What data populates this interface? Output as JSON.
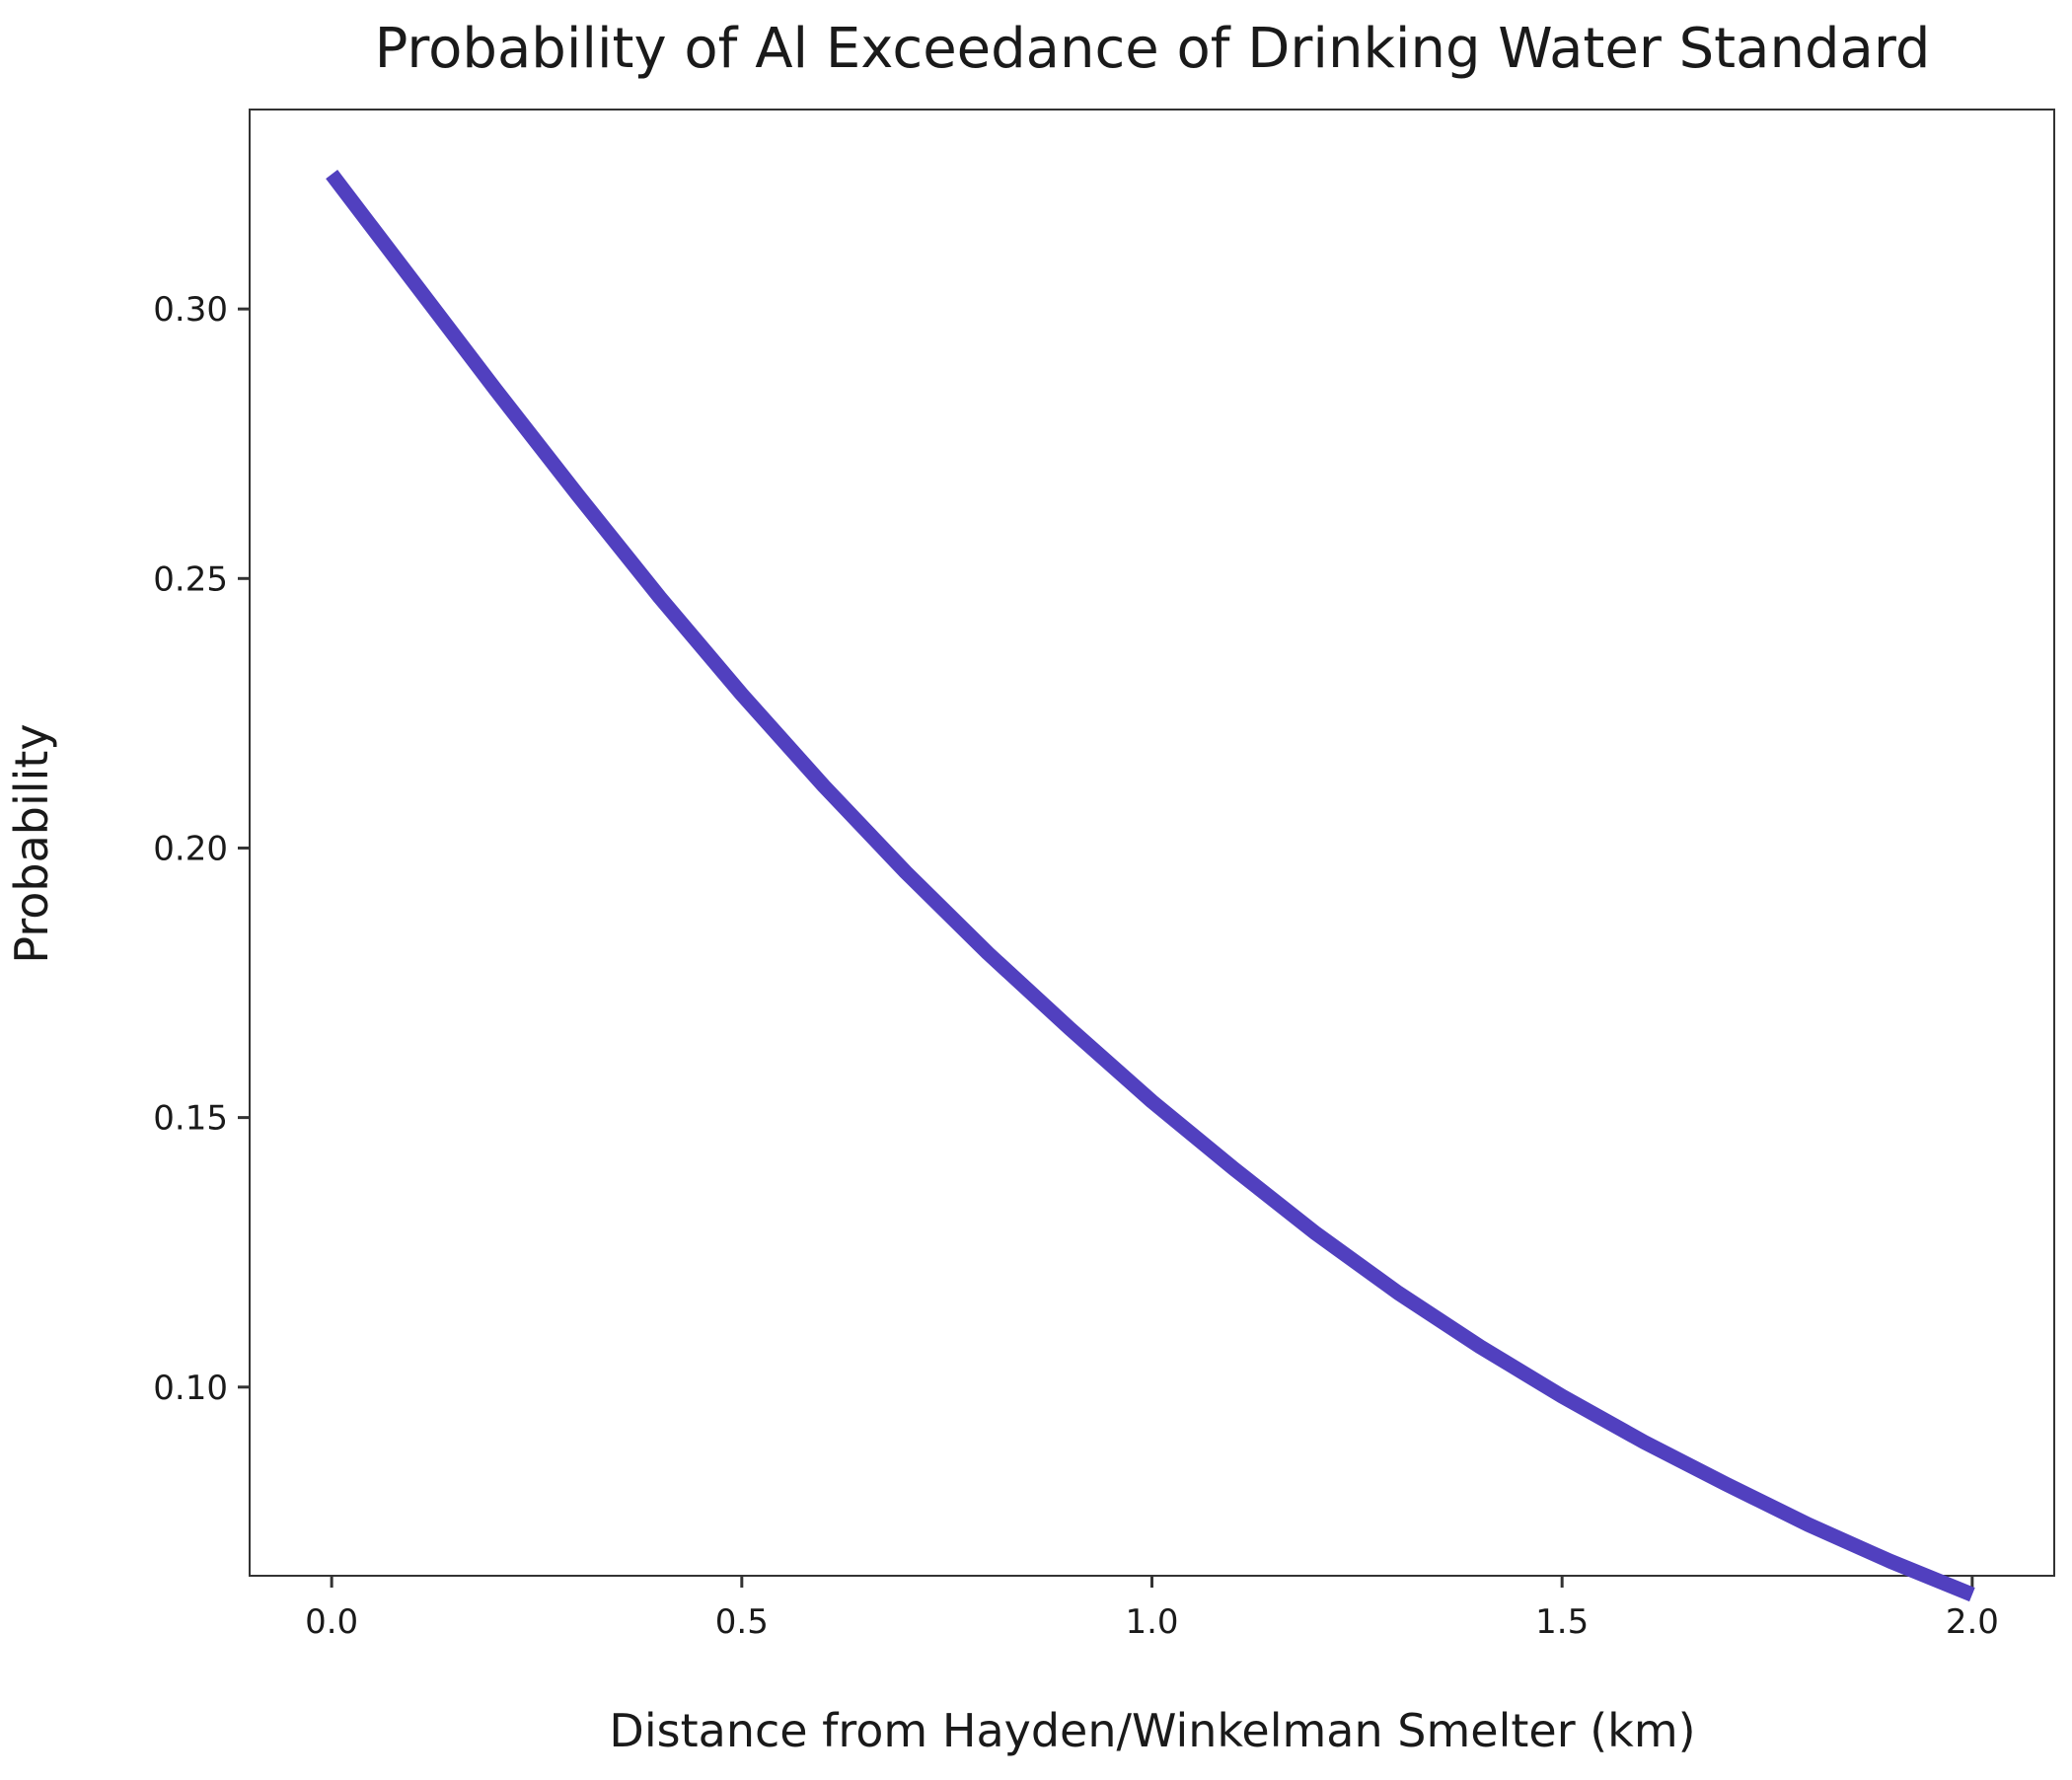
{
  "chart_data": {
    "type": "line",
    "title": "Probability of Al Exceedance of Drinking Water Standard",
    "xlabel": "Distance from Hayden/Winkelman Smelter (km)",
    "ylabel": "Probability",
    "xlim": [
      -0.1,
      2.1
    ],
    "ylim": [
      0.065,
      0.337
    ],
    "x_ticks": [
      0.0,
      0.5,
      1.0,
      1.5,
      2.0
    ],
    "x_tick_labels": [
      "0.0",
      "0.5",
      "1.0",
      "1.5",
      "2.0"
    ],
    "y_ticks": [
      0.1,
      0.15,
      0.2,
      0.25,
      0.3
    ],
    "y_tick_labels": [
      "0.10",
      "0.15",
      "0.20",
      "0.25",
      "0.30"
    ],
    "grid": false,
    "series": [
      {
        "name": "Probability",
        "color": "#5140BF",
        "x": [
          0.0,
          0.1,
          0.2,
          0.3,
          0.4,
          0.5,
          0.6,
          0.7,
          0.8,
          0.9,
          1.0,
          1.1,
          1.2,
          1.3,
          1.4,
          1.5,
          1.6,
          1.7,
          1.8,
          1.9,
          2.0
        ],
        "y": [
          0.325,
          0.305,
          0.285,
          0.2655,
          0.2465,
          0.2285,
          0.2115,
          0.1955,
          0.1805,
          0.1665,
          0.153,
          0.1405,
          0.1285,
          0.1175,
          0.1075,
          0.0983,
          0.0898,
          0.082,
          0.0745,
          0.0677,
          0.0615
        ]
      }
    ]
  }
}
